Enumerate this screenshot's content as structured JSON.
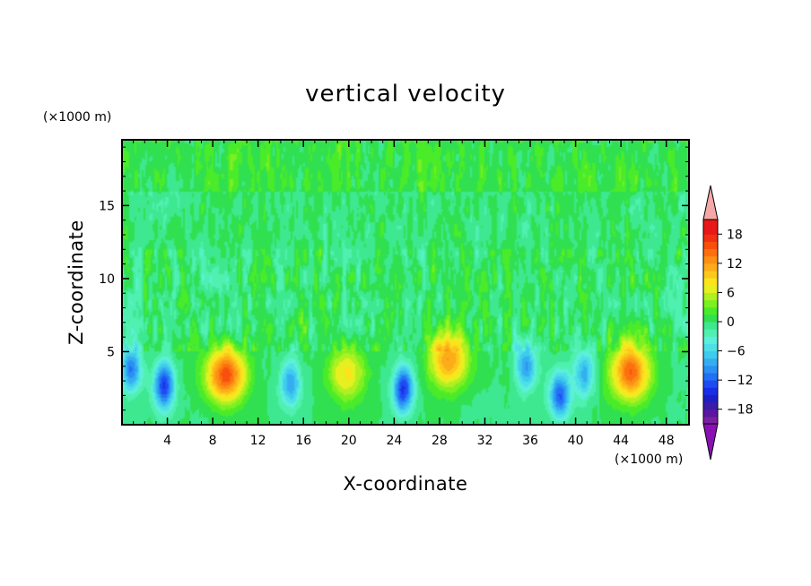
{
  "chart_data": {
    "type": "heatmap",
    "title": "vertical velocity",
    "xlabel": "X-coordinate",
    "ylabel": "Z-coordinate",
    "x_unit": "(×1000 m)",
    "y_unit": "(×1000 m)",
    "xlim": [
      0,
      50
    ],
    "ylim": [
      0,
      19.5
    ],
    "x_ticks": [
      "4",
      "8",
      "12",
      "16",
      "20",
      "24",
      "28",
      "32",
      "36",
      "40",
      "44",
      "48"
    ],
    "y_ticks": [
      "5",
      "10",
      "15"
    ],
    "x_tick_values": [
      4,
      8,
      12,
      16,
      20,
      24,
      28,
      32,
      36,
      40,
      44,
      48
    ],
    "y_tick_values": [
      5,
      10,
      15
    ],
    "colorbar": {
      "ticks": [
        "18",
        "12",
        "6",
        "0",
        "−6",
        "−12",
        "−18"
      ],
      "tick_values": [
        18,
        12,
        6,
        0,
        -6,
        -12,
        -18
      ],
      "levels": [
        -21,
        -19.5,
        -18,
        -16.5,
        -15,
        -13.5,
        -12,
        -10.5,
        -9,
        -7.5,
        -6,
        -4.5,
        -3,
        -1.5,
        0,
        1.5,
        3,
        4.5,
        6,
        7.5,
        9,
        10.5,
        12,
        13.5,
        15,
        16.5,
        18,
        19.5,
        21
      ],
      "colors": [
        "#7a1fa0",
        "#5a16a0",
        "#3a1ca8",
        "#1e1ec6",
        "#1a2ee6",
        "#1e4cf4",
        "#2270f4",
        "#2a90f4",
        "#34aef0",
        "#3ecbee",
        "#4ee0e6",
        "#5cf0da",
        "#50f0b0",
        "#3ee890",
        "#30e050",
        "#4aec2a",
        "#7cf020",
        "#b0f020",
        "#e6f020",
        "#fce41c",
        "#fcc81c",
        "#fcac18",
        "#fc9014",
        "#fc7010",
        "#f8500c",
        "#f03010",
        "#e81818",
        "#e81818"
      ],
      "under_color": "#8a10b4",
      "over_color": "#f5a8a8"
    },
    "features": [
      {
        "kind": "updraft",
        "x": 9.2,
        "z": 3.4,
        "peak": 16
      },
      {
        "kind": "updraft",
        "x": 28.8,
        "z": 4.4,
        "peak": 12
      },
      {
        "kind": "updraft",
        "x": 44.8,
        "z": 3.6,
        "peak": 15
      },
      {
        "kind": "updraft",
        "x": 19.8,
        "z": 3.5,
        "peak": 8
      },
      {
        "kind": "downdraft",
        "x": 3.7,
        "z": 2.7,
        "peak": -14
      },
      {
        "kind": "downdraft",
        "x": 0.8,
        "z": 3.8,
        "peak": -11
      },
      {
        "kind": "downdraft",
        "x": 24.8,
        "z": 2.4,
        "peak": -14
      },
      {
        "kind": "downdraft",
        "x": 35.6,
        "z": 4.0,
        "peak": -9
      },
      {
        "kind": "downdraft",
        "x": 38.6,
        "z": 2.0,
        "peak": -12
      },
      {
        "kind": "downdraft",
        "x": 14.9,
        "z": 2.8,
        "peak": -9
      },
      {
        "kind": "downdraft",
        "x": 40.8,
        "z": 3.5,
        "peak": -8
      }
    ]
  }
}
